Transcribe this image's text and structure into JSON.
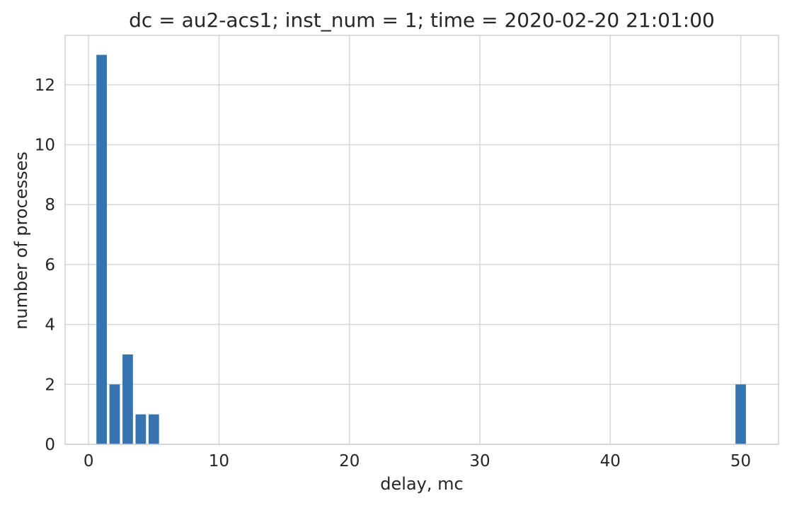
{
  "chart_data": {
    "type": "bar",
    "title": "dc = au2-acs1; inst_num = 1; time = 2020-02-20 21:01:00",
    "xlabel": "delay, mc",
    "ylabel": "number of processes",
    "x": [
      1,
      2,
      3,
      4,
      5,
      50
    ],
    "values": [
      13,
      2,
      3,
      1,
      1,
      2
    ],
    "xlim": [
      -1.8,
      52.9
    ],
    "ylim": [
      0,
      13.65
    ],
    "xticks": [
      0,
      10,
      20,
      30,
      40,
      50
    ],
    "yticks": [
      0,
      2,
      4,
      6,
      8,
      10,
      12
    ],
    "grid": true,
    "bar_width": 0.8,
    "bar_color": "#3574b0"
  }
}
